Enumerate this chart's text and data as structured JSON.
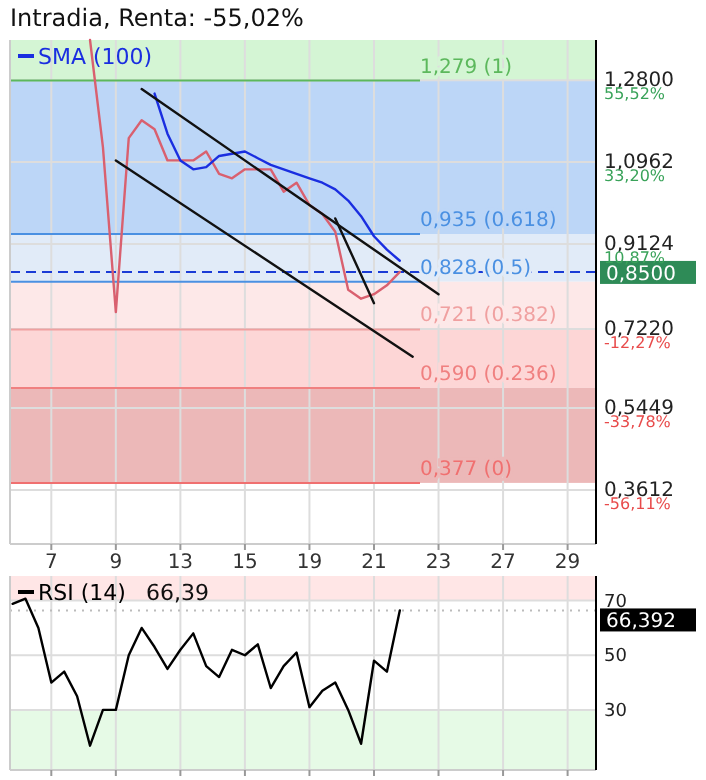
{
  "chart_data": [
    {
      "type": "line",
      "title": "Intradia, Renta: -55,02%",
      "legend": "top left",
      "grid": true,
      "categories": [
        null,
        null,
        null,
        "7",
        null,
        null,
        null,
        null,
        "9",
        null,
        null,
        null,
        null,
        "13",
        null,
        null,
        null,
        null,
        "15",
        null,
        null,
        null,
        null,
        "19",
        null,
        null,
        null,
        null,
        "21",
        null,
        null,
        null,
        null,
        "23",
        null,
        null,
        null,
        null,
        "27",
        null,
        null,
        null,
        null,
        "29",
        null,
        null
      ],
      "ylim": [
        0.24,
        1.37
      ],
      "yticks": [
        {
          "value": 1.28,
          "label": "1,2800"
        },
        {
          "value": 1.0962,
          "label": "1,0962"
        },
        {
          "value": 0.9124,
          "label": "0,9124"
        },
        {
          "value": 0.722,
          "label": "0,7220"
        },
        {
          "value": 0.5449,
          "label": "0,5449"
        },
        {
          "value": 0.3612,
          "label": "0,3612"
        }
      ],
      "y2lim": [
        -70.84,
        66.45
      ],
      "y2ticks": [
        {
          "value": 55.52,
          "label": "55,52%"
        },
        {
          "value": 33.2,
          "label": "33,20%"
        },
        {
          "value": 10.87,
          "label": "10,87%"
        },
        {
          "value": -12.27,
          "label": "-12,27%"
        },
        {
          "value": -33.78,
          "label": "-33,78%"
        },
        {
          "value": -56.11,
          "label": "-56,11%"
        }
      ],
      "bands": [
        {
          "axis": "y",
          "from": 1.279,
          "to": 1.37,
          "color": "#d4f5d4"
        },
        {
          "axis": "y",
          "from": 0.935,
          "to": 1.279,
          "color": "#bcd6f7"
        },
        {
          "axis": "y",
          "from": 0.828,
          "to": 0.935,
          "color": "#e1ebf8"
        },
        {
          "axis": "y",
          "from": 0.721,
          "to": 0.828,
          "color": "#fde8e8"
        },
        {
          "axis": "y",
          "from": 0.59,
          "to": 0.721,
          "color": "#fdd6d6"
        },
        {
          "axis": "y",
          "from": 0.377,
          "to": 0.59,
          "color": "#ecb8b8"
        }
      ],
      "ref_lines": [
        {
          "axis": "y",
          "value": 1.279,
          "label": "1,279 (1)",
          "color": "#5cb85c"
        },
        {
          "axis": "y",
          "value": 0.935,
          "label": "0,935 (0.618)",
          "color": "#4a90e2"
        },
        {
          "axis": "y",
          "value": 0.828,
          "label": "0,828 (0.5)",
          "color": "#4a90e2"
        },
        {
          "axis": "y",
          "value": 0.721,
          "label": "0,721 (0.382)",
          "color": "#f0a0a0"
        },
        {
          "axis": "y",
          "value": 0.59,
          "label": "0,590 (0.236)",
          "color": "#f08080"
        },
        {
          "axis": "y",
          "value": 0.377,
          "label": "0,377 (0)",
          "color": "#f07070"
        },
        {
          "axis": "y",
          "value": 0.85,
          "label": "0,8500",
          "color": "#1a3bd6",
          "line_style": "dashed"
        }
      ],
      "series": [
        {
          "color": "#d9606f",
          "values": [
            null,
            null,
            null,
            null,
            null,
            null,
            1.37,
            1.13,
            0.76,
            1.15,
            1.19,
            1.17,
            1.1,
            1.1,
            1.1,
            1.12,
            1.07,
            1.06,
            1.08,
            1.08,
            1.08,
            1.03,
            1.05,
            1.0,
            0.98,
            0.94,
            0.81,
            0.79,
            0.8,
            0.82,
            0.85,
            null,
            null,
            null,
            null,
            null,
            null,
            null,
            null,
            null,
            null,
            null,
            null,
            null,
            null,
            null
          ]
        },
        {
          "name": "SMA (100)",
          "color": "#1a2ee0",
          "values": [
            null,
            null,
            null,
            null,
            null,
            null,
            null,
            null,
            null,
            null,
            null,
            1.25,
            1.16,
            1.1,
            1.08,
            1.085,
            1.11,
            1.115,
            1.12,
            1.105,
            1.09,
            1.08,
            1.07,
            1.06,
            1.05,
            1.035,
            1.01,
            0.975,
            0.93,
            0.9,
            0.875,
            null,
            null,
            null,
            null,
            null,
            null,
            null,
            null,
            null,
            null,
            null,
            null,
            null,
            null,
            null
          ]
        },
        {
          "color": "#111111",
          "values": [
            null,
            null,
            null,
            null,
            null,
            null,
            null,
            null,
            null,
            null,
            1.26,
            null,
            null,
            null,
            null,
            null,
            null,
            null,
            null,
            null,
            null,
            null,
            null,
            null,
            null,
            null,
            null,
            null,
            null,
            null,
            null,
            null,
            null,
            0.8,
            null,
            null,
            null,
            null,
            null,
            null,
            null,
            null,
            null,
            null,
            null,
            null
          ]
        },
        {
          "color": "#111111",
          "values": [
            null,
            null,
            null,
            null,
            null,
            null,
            null,
            null,
            1.1,
            null,
            null,
            null,
            null,
            null,
            null,
            null,
            null,
            null,
            null,
            null,
            null,
            null,
            null,
            null,
            null,
            null,
            null,
            null,
            null,
            null,
            null,
            0.66,
            null,
            null,
            null,
            null,
            null,
            null,
            null,
            null,
            null,
            null,
            null,
            null,
            null,
            null
          ]
        },
        {
          "color": "#111111",
          "values": [
            null,
            null,
            null,
            null,
            null,
            null,
            null,
            null,
            null,
            null,
            null,
            null,
            null,
            null,
            null,
            null,
            null,
            null,
            null,
            null,
            null,
            null,
            null,
            null,
            null,
            0.97,
            null,
            null,
            0.78,
            null,
            null,
            null,
            null,
            null,
            null,
            null,
            null,
            null,
            null,
            null,
            null,
            null,
            null,
            null,
            null,
            null
          ]
        }
      ]
    },
    {
      "type": "line",
      "legend": "top left",
      "grid": true,
      "tick_labels": "y",
      "annotations": [
        "66,39"
      ],
      "ref_lines": [
        {
          "axis": "y",
          "value": 66.392,
          "label": "66,392",
          "color": "#bbbbbb",
          "line_style": "dotted"
        }
      ],
      "categories": [
        null,
        null,
        null,
        "7",
        null,
        null,
        null,
        null,
        "9",
        null,
        null,
        null,
        null,
        "13",
        null,
        null,
        null,
        null,
        "15",
        null,
        null,
        null,
        null,
        "19",
        null,
        null,
        null,
        null,
        "21",
        null,
        null,
        null,
        null,
        "23",
        null,
        null,
        null,
        null,
        "27",
        null,
        null,
        null,
        null,
        "29",
        null,
        null
      ],
      "ylim": [
        8,
        79
      ],
      "yticks": [
        30,
        50,
        70
      ],
      "bands": [
        {
          "axis": "y",
          "from": 70,
          "to": 79,
          "color": "#ffe6e6"
        },
        {
          "axis": "y",
          "from": 8,
          "to": 30,
          "color": "#e6fae6"
        }
      ],
      "series": [
        {
          "name": "RSI (14)",
          "color": "#000000",
          "values": [
            68.8,
            70.7,
            60,
            40,
            44,
            35,
            16.9,
            30,
            30,
            50,
            60,
            53,
            45,
            52,
            58,
            46,
            42,
            52,
            50,
            54,
            38,
            46,
            51,
            31,
            37,
            40,
            30,
            17.6,
            48,
            44,
            66.4,
            null,
            null,
            null,
            null,
            null,
            null,
            null,
            null,
            null,
            null,
            null,
            null,
            null,
            null,
            null
          ]
        }
      ]
    }
  ]
}
